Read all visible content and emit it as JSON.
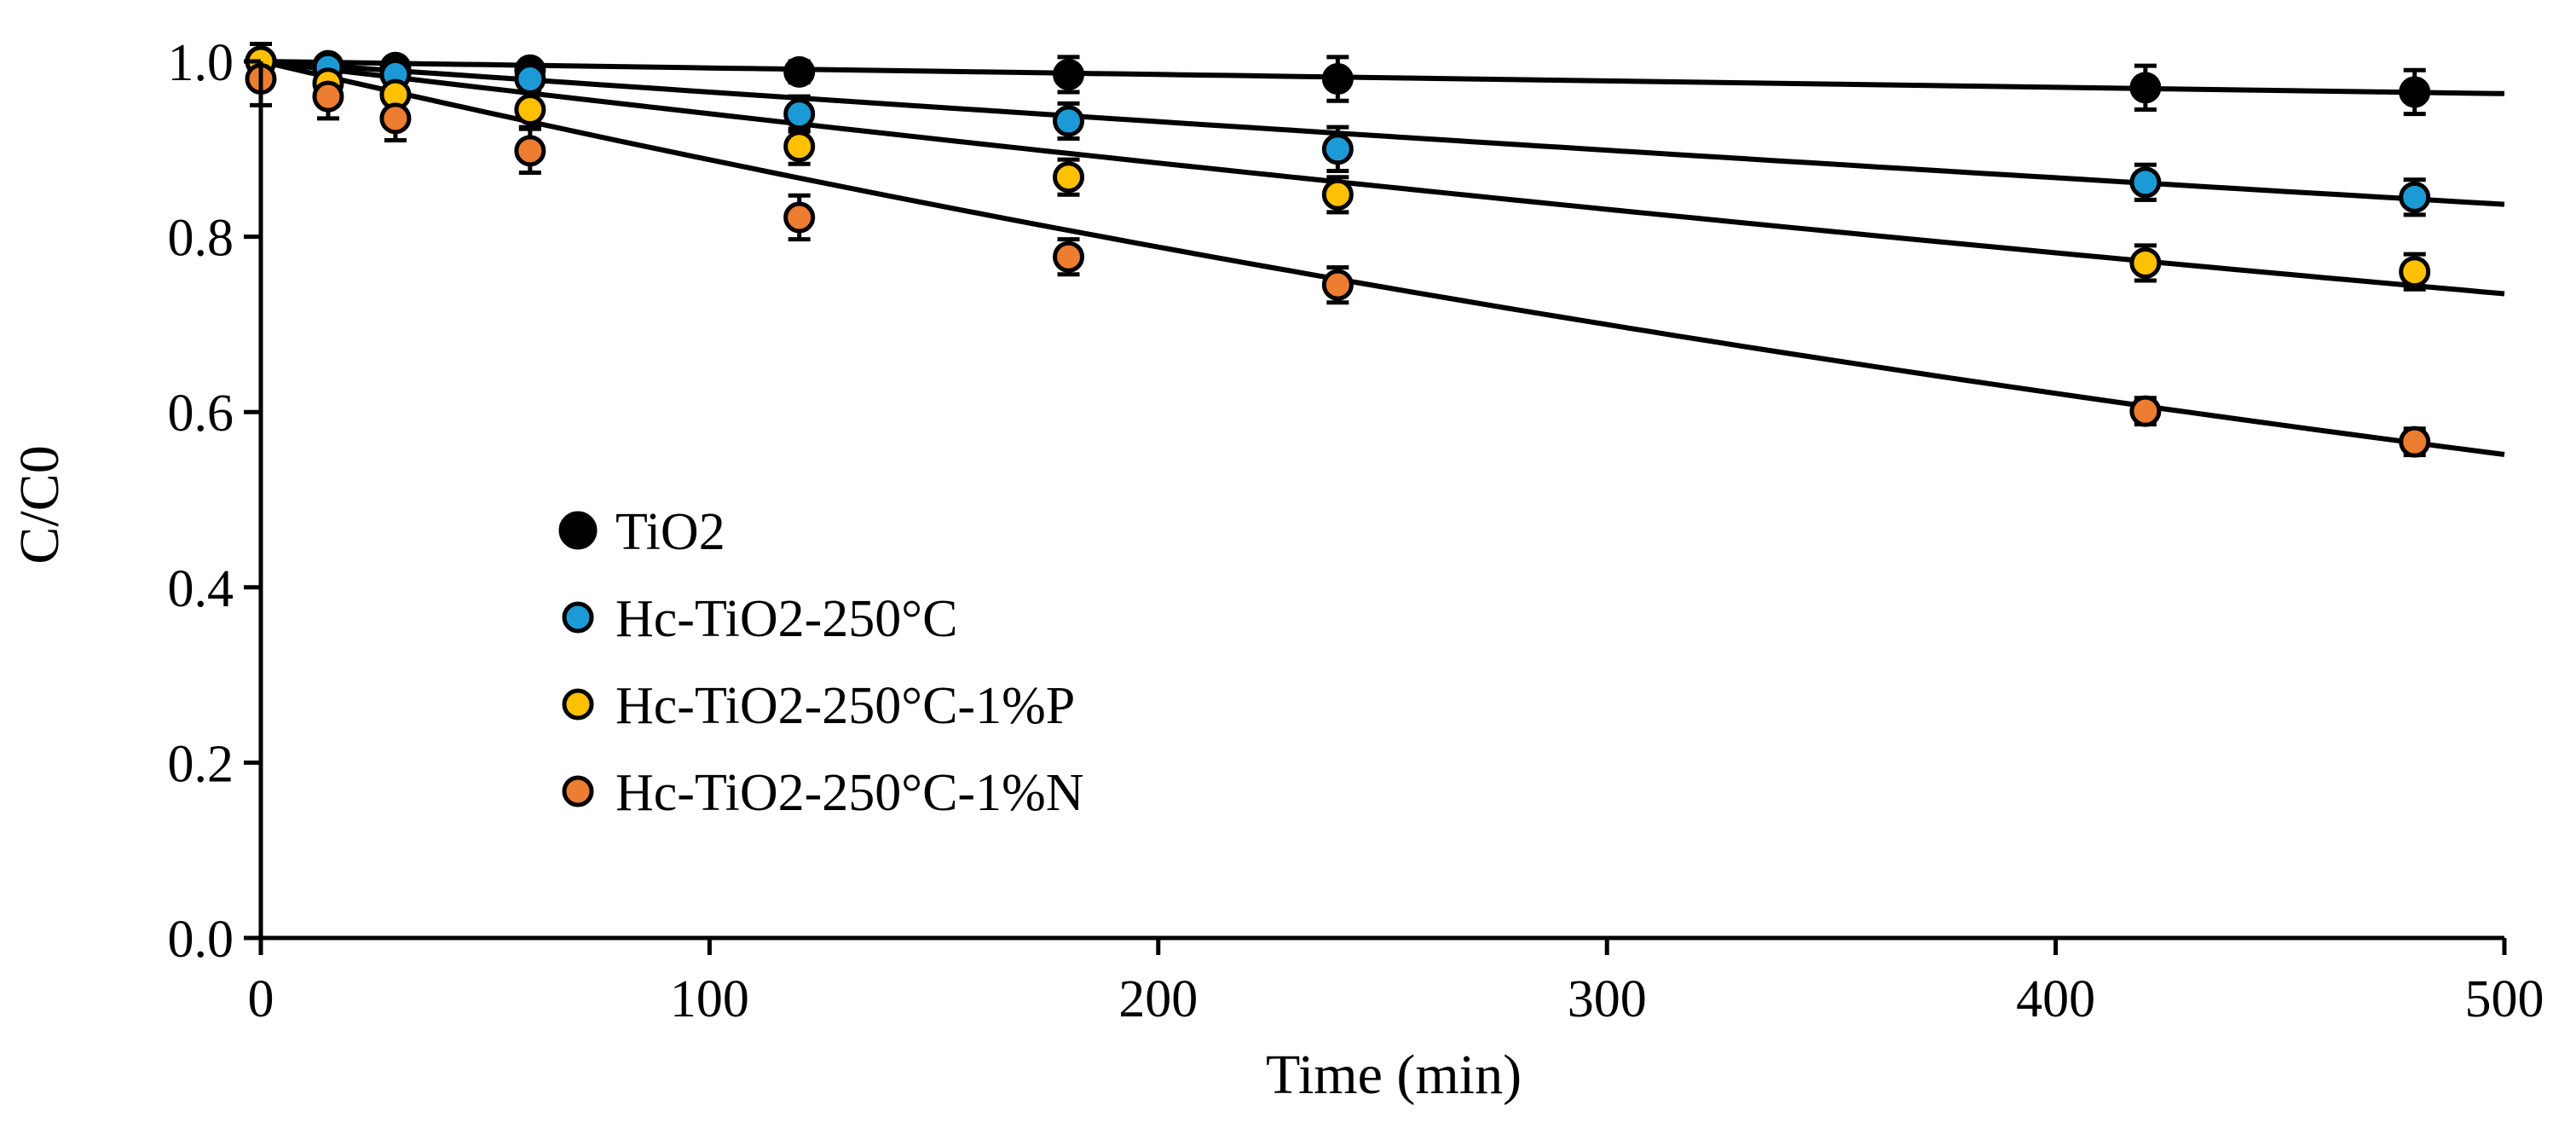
{
  "chart_data": {
    "type": "scatter",
    "title": "",
    "xlabel": "Time (min)",
    "ylabel": "C/C0",
    "xlim": [
      0,
      500
    ],
    "ylim": [
      0,
      1.0
    ],
    "xticks": [
      0,
      100,
      200,
      300,
      400,
      500
    ],
    "yticks": [
      0.0,
      0.2,
      0.4,
      0.6,
      0.8,
      1.0
    ],
    "xtick_labels": [
      "0",
      "100",
      "200",
      "300",
      "400",
      "500"
    ],
    "ytick_labels": [
      "0.0",
      "0.2",
      "0.4",
      "0.6",
      "0.8",
      "1.0"
    ],
    "grid": false,
    "legend_position": "center-left",
    "series": [
      {
        "name": "TiO2",
        "color": "#000000",
        "x": [
          0,
          15,
          30,
          60,
          120,
          180,
          240,
          420,
          480
        ],
        "y": [
          1.0,
          0.995,
          0.993,
          0.99,
          0.988,
          0.985,
          0.98,
          0.97,
          0.965
        ],
        "error": [
          0.01,
          0.01,
          0.01,
          0.01,
          0.012,
          0.02,
          0.025,
          0.025,
          0.025
        ],
        "fit_k": 7.5e-05
      },
      {
        "name": "Hc-TiO2-250°C",
        "color": "#1B9AD6",
        "x": [
          0,
          15,
          30,
          60,
          120,
          180,
          240,
          420,
          480
        ],
        "y": [
          1.0,
          0.993,
          0.985,
          0.98,
          0.94,
          0.932,
          0.9,
          0.862,
          0.845
        ],
        "error": [
          0.01,
          0.01,
          0.01,
          0.01,
          0.02,
          0.02,
          0.025,
          0.02,
          0.02
        ],
        "fit_k": 0.000356
      },
      {
        "name": "Hc-TiO2-250°C-1%P",
        "color": "#FFC000",
        "x": [
          0,
          15,
          30,
          60,
          120,
          180,
          240,
          420,
          480
        ],
        "y": [
          1.0,
          0.975,
          0.962,
          0.945,
          0.903,
          0.868,
          0.848,
          0.77,
          0.76
        ],
        "error": [
          0.02,
          0.02,
          0.02,
          0.02,
          0.02,
          0.02,
          0.02,
          0.02,
          0.02
        ],
        "fit_k": 0.000616
      },
      {
        "name": "Hc-TiO2-250°C-1%N",
        "color": "#ED7D31",
        "x": [
          0,
          15,
          30,
          60,
          120,
          180,
          240,
          420,
          480
        ],
        "y": [
          0.98,
          0.96,
          0.935,
          0.898,
          0.822,
          0.777,
          0.745,
          0.601,
          0.566
        ],
        "error": [
          0.03,
          0.025,
          0.025,
          0.025,
          0.025,
          0.02,
          0.02,
          0.015,
          0.015
        ],
        "fit_k": 0.00119
      }
    ]
  }
}
